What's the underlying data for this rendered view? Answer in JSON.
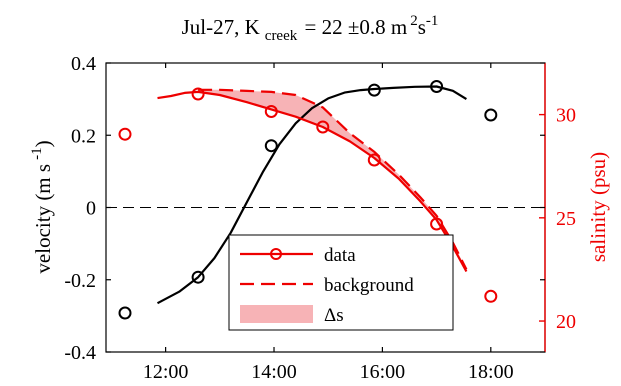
{
  "chart_data": {
    "type": "line",
    "title": {
      "prefix": "Jul-27, K",
      "subscript": "creek",
      "value": " = 22 ±0.8 m",
      "sup1": "2",
      "unit_mid": "s",
      "sup2": "-1"
    },
    "xlabel": "",
    "x_range_hours": [
      10.9,
      19.0
    ],
    "x_ticks": [
      {
        "label": "12:00",
        "hour": 12
      },
      {
        "label": "14:00",
        "hour": 14
      },
      {
        "label": "16:00",
        "hour": 16
      },
      {
        "label": "18:00",
        "hour": 18
      }
    ],
    "left_axis": {
      "label_main": "velocity (m s",
      "label_sup": "-1",
      "label_close": ")",
      "ylim": [
        -0.4,
        0.4
      ],
      "ticks": [
        "0.4",
        "0.2",
        "0",
        "-0.2",
        "-0.4"
      ],
      "tick_values": [
        0.4,
        0.2,
        0,
        -0.2,
        -0.4
      ],
      "color": "#000000"
    },
    "right_axis": {
      "label": "salinity (psu)",
      "ylim": [
        18.5,
        32.5
      ],
      "ticks": [
        "30",
        "25",
        "20"
      ],
      "tick_values": [
        30,
        25,
        20
      ],
      "color": "#ee0000"
    },
    "zero_line": {
      "y": 0,
      "style": "dashed"
    },
    "series": [
      {
        "kind": "velocity-observed",
        "axis": "left",
        "color": "#000000",
        "marker": "circle",
        "x_hours": [
          11.25,
          12.6,
          13.95,
          15.85,
          17.0,
          18.0
        ],
        "y": [
          -0.292,
          -0.193,
          0.171,
          0.325,
          0.335,
          0.256
        ]
      },
      {
        "kind": "velocity-fit",
        "axis": "left",
        "color": "#000000",
        "x_hours": [
          11.85,
          12.25,
          12.6,
          12.9,
          13.2,
          13.5,
          13.8,
          14.1,
          14.4,
          14.7,
          15.0,
          15.3,
          15.6,
          15.85,
          16.2,
          16.6,
          17.0,
          17.3,
          17.55
        ],
        "y": [
          -0.265,
          -0.233,
          -0.193,
          -0.14,
          -0.07,
          0.015,
          0.1,
          0.175,
          0.233,
          0.275,
          0.302,
          0.318,
          0.325,
          0.328,
          0.331,
          0.334,
          0.335,
          0.323,
          0.3
        ]
      },
      {
        "name": "data",
        "axis": "right",
        "color": "#ee0000",
        "marker": "circle",
        "line": "solid",
        "line_x_hours": [
          11.85,
          12.1,
          12.35,
          12.6,
          13.0,
          13.5,
          13.95,
          14.4,
          14.9,
          15.4,
          15.85,
          16.3,
          16.7,
          17.0,
          17.3,
          17.55
        ],
        "line_y": [
          30.8,
          30.9,
          31.05,
          31.1,
          30.95,
          30.6,
          30.25,
          29.9,
          29.4,
          28.7,
          27.9,
          26.9,
          25.8,
          24.9,
          23.6,
          22.4
        ],
        "marker_x_hours": [
          11.25,
          12.6,
          13.95,
          14.9,
          15.85,
          17.0,
          18.0
        ],
        "marker_y": [
          29.05,
          31.0,
          30.15,
          29.4,
          27.8,
          24.7,
          21.2
        ]
      },
      {
        "name": "background",
        "axis": "right",
        "color": "#ee0000",
        "line": "dashed",
        "x_hours": [
          12.6,
          13.0,
          13.5,
          13.95,
          14.4,
          14.9,
          15.4,
          15.85,
          16.3,
          16.7,
          17.0,
          17.3,
          17.55
        ],
        "y": [
          31.2,
          31.2,
          31.15,
          31.1,
          30.95,
          30.35,
          29.1,
          28.2,
          27.1,
          26.0,
          25.1,
          23.8,
          22.5
        ]
      },
      {
        "name": "Δs",
        "kind": "area-between",
        "axis": "right",
        "color": "#f7b3b6"
      }
    ],
    "legend": {
      "placement": "lower-center",
      "entries": [
        {
          "label": "data",
          "style": "solid-marker"
        },
        {
          "label": "background",
          "style": "dashed"
        },
        {
          "label": "Δs",
          "style": "patch"
        }
      ]
    },
    "grid": false
  }
}
